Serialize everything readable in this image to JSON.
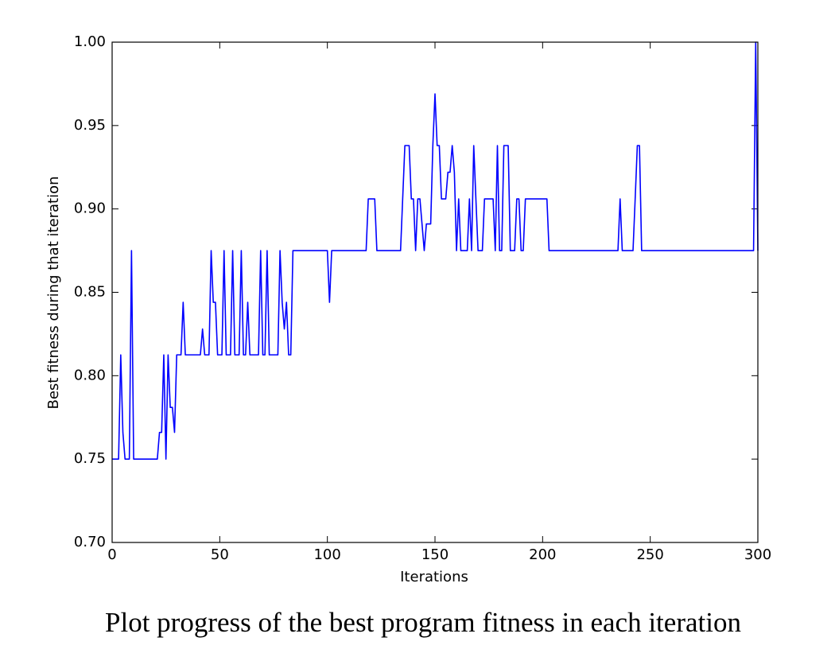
{
  "chart_data": {
    "type": "line",
    "xlabel": "Iterations",
    "ylabel": "Best fitness during that iteration",
    "color": "#0000ff",
    "xlim": [
      0,
      300
    ],
    "xticks": [
      0,
      50,
      100,
      150,
      200,
      250,
      300
    ],
    "ylim": [
      0.7,
      1.0
    ],
    "yticks": [
      {
        "value": 0.7,
        "label": "0.70"
      },
      {
        "value": 0.75,
        "label": "0.75"
      },
      {
        "value": 0.8,
        "label": "0.80"
      },
      {
        "value": 0.85,
        "label": "0.85"
      },
      {
        "value": 0.9,
        "label": "0.90"
      },
      {
        "value": 0.95,
        "label": "0.95"
      },
      {
        "value": 1.0,
        "label": "1.00"
      }
    ],
    "grid": false,
    "x": [
      0,
      3,
      4,
      5,
      6,
      8,
      9,
      10,
      21,
      22,
      23,
      24,
      25,
      26,
      27,
      28,
      29,
      30,
      32,
      33,
      34,
      41,
      42,
      43,
      45,
      46,
      47,
      48,
      49,
      51,
      52,
      53,
      55,
      56,
      57,
      59,
      60,
      61,
      62,
      63,
      64,
      68,
      69,
      70,
      71,
      72,
      73,
      77,
      78,
      79,
      80,
      81,
      82,
      83,
      84,
      100,
      101,
      102,
      118,
      119,
      122,
      123,
      134,
      136,
      138,
      139,
      140,
      141,
      142,
      143,
      145,
      146,
      148,
      149,
      150,
      151,
      152,
      153,
      155,
      156,
      157,
      158,
      159,
      160,
      161,
      162,
      165,
      166,
      167,
      168,
      169,
      170,
      172,
      173,
      177,
      178,
      179,
      180,
      181,
      182,
      184,
      185,
      187,
      188,
      189,
      190,
      191,
      192,
      202,
      203,
      235,
      236,
      237,
      242,
      243,
      244,
      245,
      246,
      298,
      299,
      300
    ],
    "values": [
      0.75,
      0.75,
      0.8125,
      0.766,
      0.75,
      0.75,
      0.875,
      0.75,
      0.75,
      0.766,
      0.766,
      0.8125,
      0.75,
      0.8125,
      0.781,
      0.781,
      0.766,
      0.8125,
      0.8125,
      0.844,
      0.8125,
      0.8125,
      0.828,
      0.8125,
      0.8125,
      0.875,
      0.844,
      0.844,
      0.8125,
      0.8125,
      0.875,
      0.8125,
      0.8125,
      0.875,
      0.8125,
      0.8125,
      0.875,
      0.8125,
      0.8125,
      0.844,
      0.8125,
      0.8125,
      0.875,
      0.8125,
      0.8125,
      0.875,
      0.8125,
      0.8125,
      0.875,
      0.844,
      0.828,
      0.844,
      0.8125,
      0.8125,
      0.875,
      0.875,
      0.844,
      0.875,
      0.875,
      0.906,
      0.906,
      0.875,
      0.875,
      0.938,
      0.938,
      0.906,
      0.906,
      0.875,
      0.906,
      0.906,
      0.875,
      0.891,
      0.891,
      0.938,
      0.969,
      0.938,
      0.938,
      0.906,
      0.906,
      0.922,
      0.922,
      0.938,
      0.922,
      0.875,
      0.906,
      0.875,
      0.875,
      0.906,
      0.875,
      0.938,
      0.906,
      0.875,
      0.875,
      0.906,
      0.906,
      0.875,
      0.938,
      0.875,
      0.875,
      0.938,
      0.938,
      0.875,
      0.875,
      0.906,
      0.906,
      0.875,
      0.875,
      0.906,
      0.906,
      0.875,
      0.875,
      0.906,
      0.875,
      0.875,
      0.906,
      0.938,
      0.938,
      0.875,
      0.875,
      1.0,
      0.875
    ]
  },
  "caption": "Plot progress of the best program fitness in each iteration"
}
